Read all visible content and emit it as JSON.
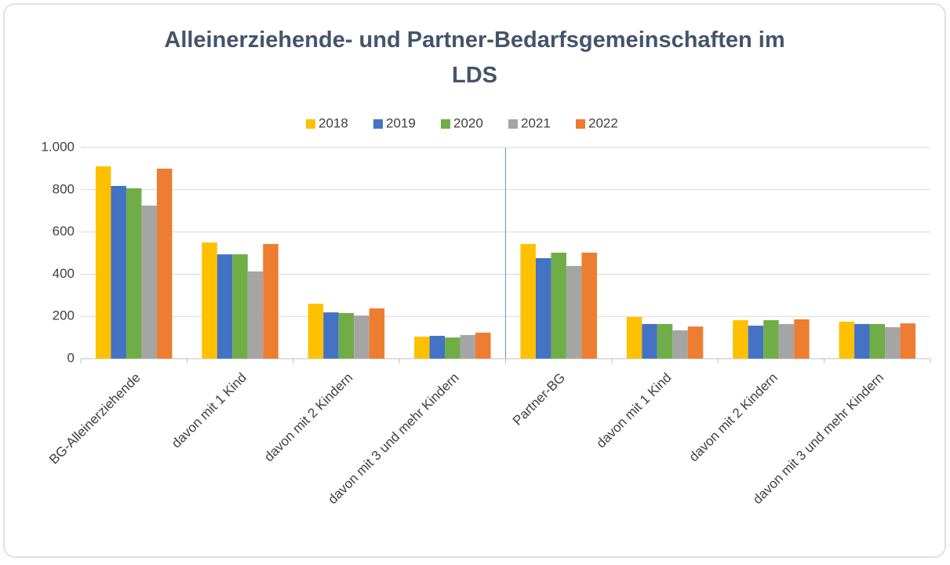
{
  "chart_data": {
    "type": "bar",
    "title": "Alleinerziehende- und Partner-Bedarfsgemeinschaften im LDS",
    "categories": [
      "BG-Alleinerziehende",
      "davon mit 1 Kind",
      "davon mit 2 Kindern",
      "davon mit 3 und mehr Kindern",
      "Partner-BG",
      "davon mit 1 Kind",
      "davon mit 2 Kindern",
      "davon mit 3 und mehr Kindern"
    ],
    "series": [
      {
        "name": "2018",
        "color": "#ffc000",
        "values": [
          911,
          550,
          260,
          104,
          543,
          197,
          182,
          175
        ]
      },
      {
        "name": "2019",
        "color": "#4472c4",
        "values": [
          818,
          494,
          219,
          108,
          476,
          164,
          156,
          164
        ]
      },
      {
        "name": "2020",
        "color": "#70ad47",
        "values": [
          807,
          494,
          216,
          100,
          502,
          164,
          182,
          164
        ]
      },
      {
        "name": "2021",
        "color": "#a5a5a5",
        "values": [
          725,
          413,
          204,
          112,
          439,
          134,
          164,
          149
        ]
      },
      {
        "name": "2022",
        "color": "#ed7d31",
        "values": [
          900,
          543,
          238,
          123,
          502,
          152,
          186,
          167
        ]
      }
    ],
    "ylim": [
      0,
      1000
    ],
    "yticks": [
      0,
      200,
      400,
      600,
      800,
      {
        "value": 1000,
        "label": "1.000"
      }
    ],
    "grid": true,
    "legend": "top"
  }
}
